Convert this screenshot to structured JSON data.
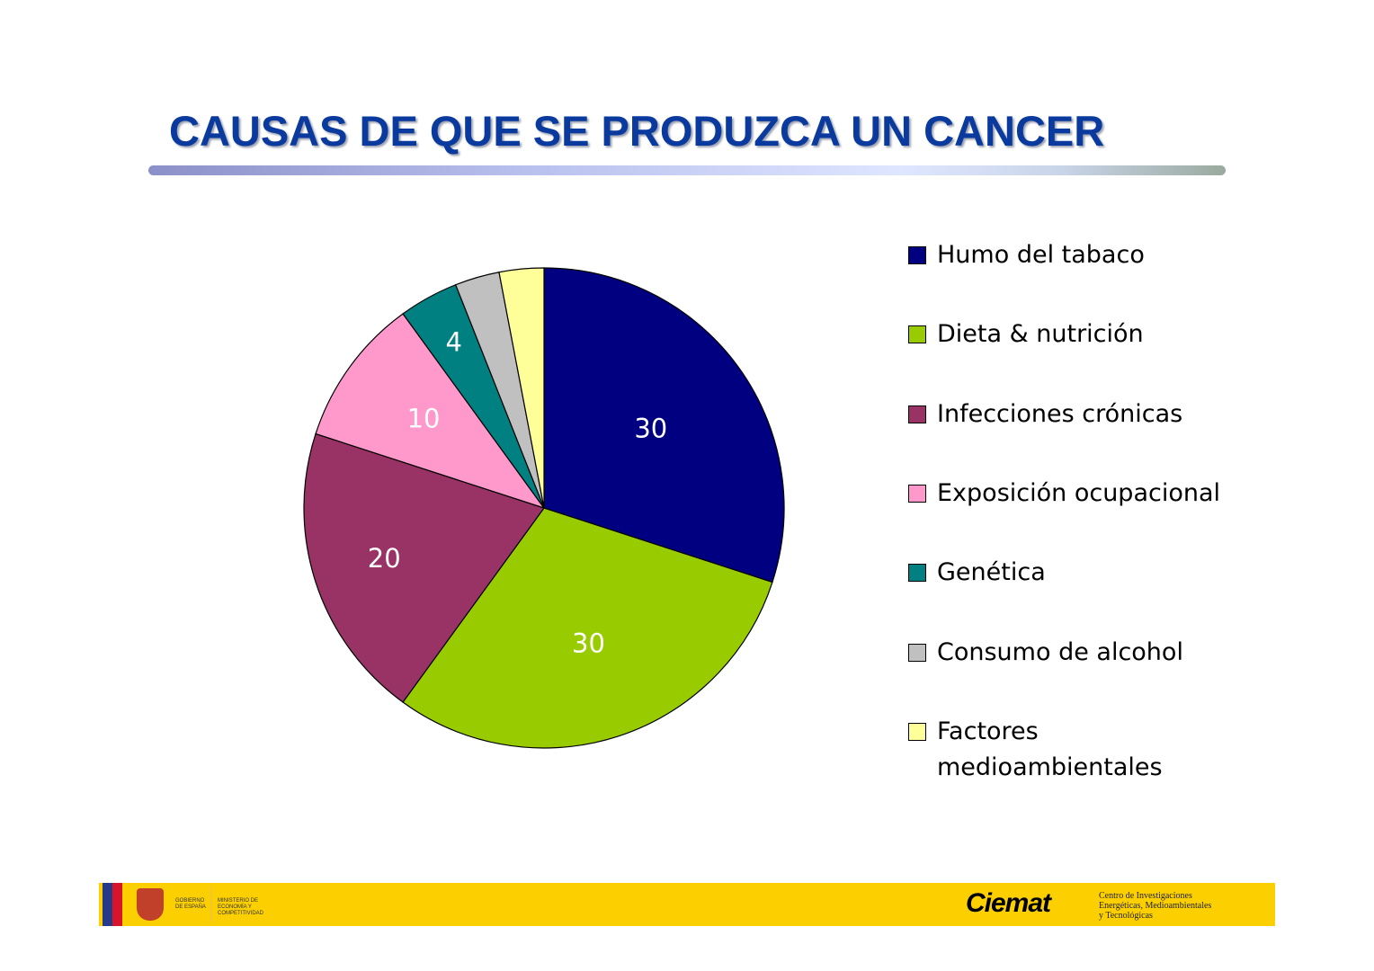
{
  "title": "CAUSAS DE QUE SE PRODUZCA UN CANCER",
  "chart_data": {
    "type": "pie",
    "title": "CAUSAS DE QUE SE PRODUZCA UN CANCER",
    "start": "top, clockwise",
    "legend_placement": "right",
    "slices": [
      {
        "label": "Humo del tabaco",
        "value": 30,
        "color": "#000080",
        "shown_label": "30"
      },
      {
        "label": "Dieta & nutrición",
        "value": 30,
        "color": "#99cc00",
        "shown_label": "30"
      },
      {
        "label": "Infecciones crónicas",
        "value": 20,
        "color": "#993366",
        "shown_label": "20"
      },
      {
        "label": "Exposición ocupacional",
        "value": 10,
        "color": "#ff99cc",
        "shown_label": "10"
      },
      {
        "label": "Genética",
        "value": 4,
        "color": "#008080",
        "shown_label": "4"
      },
      {
        "label": "Consumo de alcohol",
        "value": 3,
        "color": "#c0c0c0",
        "shown_label": ""
      },
      {
        "label": "Factores medioambientales",
        "value": 3,
        "color": "#ffff99",
        "shown_label": ""
      }
    ]
  },
  "footer": {
    "gobierno": "GOBIERNO DE ESPAÑA",
    "ministerio": "MINISTERIO DE ECONOMÍA Y COMPETITIVIDAD",
    "ciemat_logo": "Ciemat",
    "ciemat_sub_1": "Centro de Investigaciones",
    "ciemat_sub_2": "Energéticas, Medioambientales",
    "ciemat_sub_3": "y Tecnológicas",
    "background_color": "#fcd000"
  }
}
